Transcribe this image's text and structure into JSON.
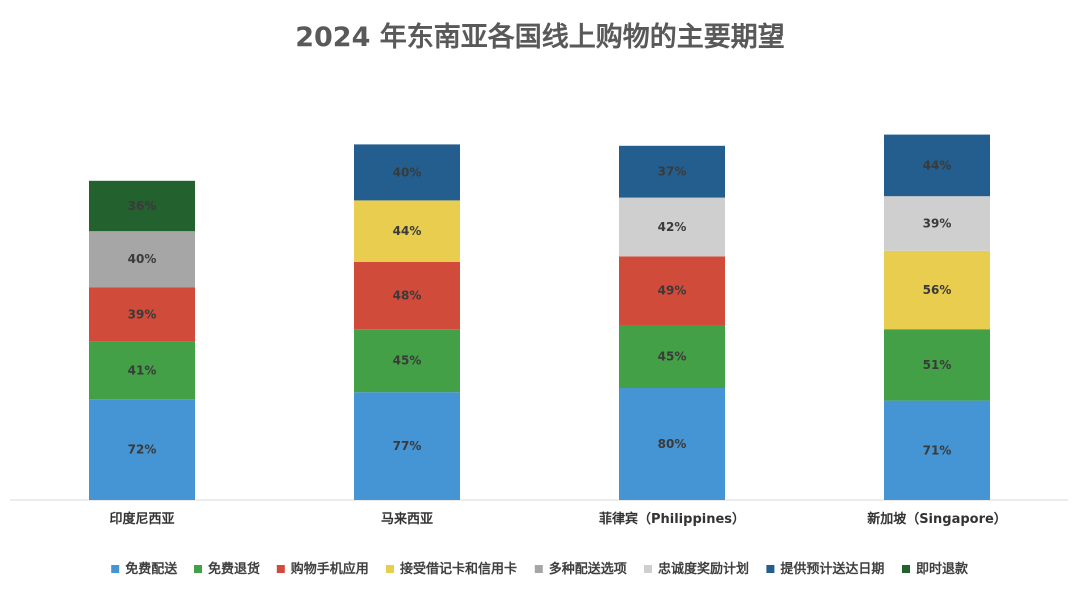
{
  "chart_data": {
    "type": "bar",
    "stacked": true,
    "title": "2024 年东南亚各国线上购物的主要期望",
    "xlabel": "",
    "ylabel": "",
    "categories": [
      "印度尼西亚",
      "马来西亚",
      "菲律宾（Philippines）",
      "新加坡（Singapore）"
    ],
    "legend_position": "bottom",
    "grid": false,
    "series": [
      {
        "name": "免费配送",
        "color": "#4594D3",
        "values": [
          72,
          77,
          80,
          71
        ],
        "labels": [
          "72%",
          "77%",
          "80%",
          "71%"
        ]
      },
      {
        "name": "免费退货",
        "color": "#43A047",
        "values": [
          41,
          45,
          45,
          51
        ],
        "labels": [
          "41%",
          "45%",
          "45%",
          "51%"
        ]
      },
      {
        "name": "购物手机应用",
        "color": "#D14B3A",
        "values": [
          39,
          48,
          49,
          null
        ],
        "labels": [
          "39%",
          "48%",
          "49%",
          ""
        ]
      },
      {
        "name": "接受借记卡和信用卡",
        "color": "#E8CD4E",
        "values": [
          null,
          44,
          null,
          56
        ],
        "labels": [
          "",
          "44%",
          "",
          "56%"
        ]
      },
      {
        "name": "多种配送选项",
        "color": "#A6A6A6",
        "values": [
          40,
          null,
          null,
          null
        ],
        "labels": [
          "40%",
          "",
          "",
          ""
        ]
      },
      {
        "name": "忠诚度奖励计划",
        "color": "#CFCFCF",
        "values": [
          null,
          null,
          42,
          39
        ],
        "labels": [
          "",
          "",
          "42%",
          "39%"
        ]
      },
      {
        "name": "提供预计送达日期",
        "color": "#245E8E",
        "values": [
          null,
          40,
          37,
          44
        ],
        "labels": [
          "",
          "40%",
          "37%",
          "44%"
        ]
      },
      {
        "name": "即时退款",
        "color": "#23612F",
        "values": [
          36,
          null,
          null,
          null
        ],
        "labels": [
          "36%",
          "",
          "",
          ""
        ]
      }
    ]
  }
}
